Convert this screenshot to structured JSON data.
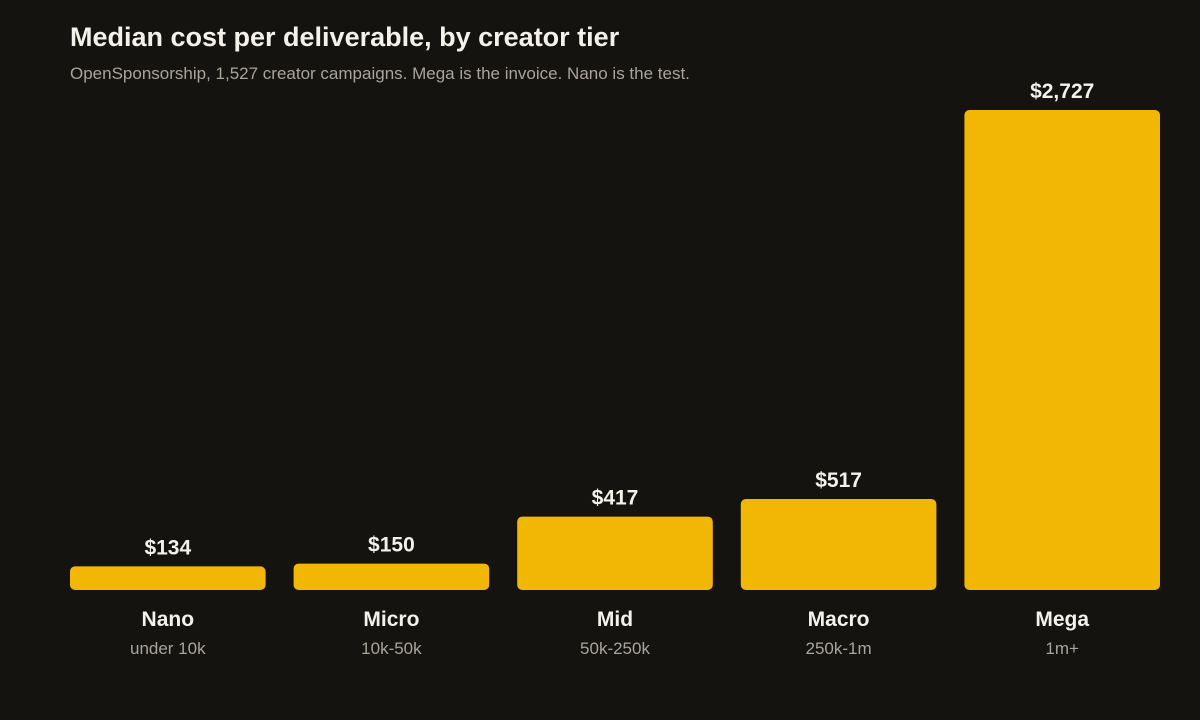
{
  "title": "Median cost per deliverable, by creator tier",
  "subtitle": "OpenSponsorship, 1,527 creator campaigns. Mega is the invoice. Nano is the test.",
  "colors": {
    "background": "#151310",
    "bar": "#f2b705",
    "value_text": "#f4f1ea",
    "category_text": "#f4f1ea",
    "range_text": "#a9a49a"
  },
  "chart_data": {
    "type": "bar",
    "categories": [
      "Nano",
      "Micro",
      "Mid",
      "Macro",
      "Mega"
    ],
    "category_ranges": [
      "under 10k",
      "10k-50k",
      "50k-250k",
      "250k-1m",
      "1m+"
    ],
    "values": [
      134,
      150,
      417,
      517,
      2727
    ],
    "value_labels": [
      "$134",
      "$150",
      "$417",
      "$517",
      "$2,727"
    ],
    "ylim": [
      0,
      2727
    ],
    "grid": false,
    "legend": "none"
  }
}
